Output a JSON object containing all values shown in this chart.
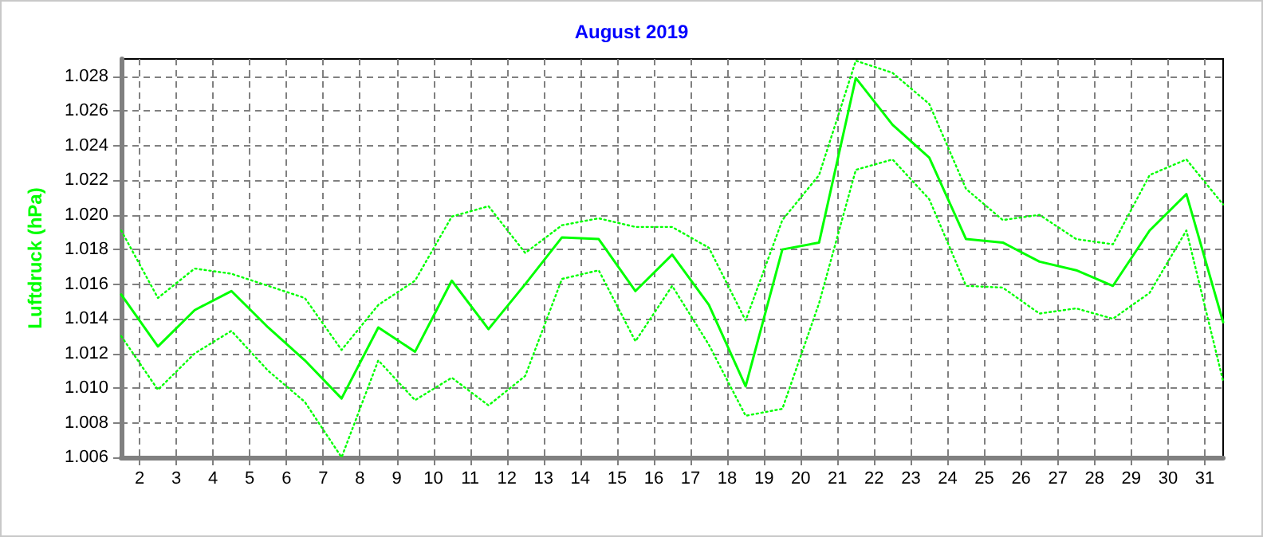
{
  "chart_data": {
    "type": "line",
    "title": "August 2019",
    "ylabel": "Luftdruck (hPa)",
    "x": [
      1.5,
      2.5,
      3.5,
      4.5,
      5.5,
      6.5,
      7.5,
      8.5,
      9.5,
      10.5,
      11.5,
      12.5,
      13.5,
      14.5,
      15.5,
      16.5,
      17.5,
      18.5,
      19.5,
      20.5,
      21.5,
      22.5,
      23.5,
      24.5,
      25.5,
      26.5,
      27.5,
      28.5,
      29.5,
      30.5,
      31.5
    ],
    "xlim": [
      1.5,
      31.5
    ],
    "xticks": [
      2,
      3,
      4,
      5,
      6,
      7,
      8,
      9,
      10,
      11,
      12,
      13,
      14,
      15,
      16,
      17,
      18,
      19,
      20,
      21,
      22,
      23,
      24,
      25,
      26,
      27,
      28,
      29,
      30,
      31
    ],
    "ylim": [
      1.006,
      1.029
    ],
    "yticks": [
      1.006,
      1.008,
      {
        "value": 1.01,
        "label": "1.010"
      },
      1.012,
      1.014,
      1.016,
      1.018,
      {
        "value": 1.02,
        "label": "1.020"
      },
      1.022,
      1.024,
      1.026,
      1.028
    ],
    "grid": true,
    "marker": "none",
    "series": [
      {
        "color": "#00ff00",
        "line_style": "dotted",
        "values": [
          1.0191,
          1.0152,
          1.0169,
          1.0166,
          1.0159,
          1.0152,
          1.0122,
          1.0148,
          1.0162,
          1.0199,
          1.0205,
          1.0178,
          1.0194,
          1.0198,
          1.0193,
          1.0193,
          1.0181,
          1.0139,
          1.0197,
          1.0223,
          1.0289,
          1.0282,
          1.0264,
          1.0215,
          1.0197,
          1.02,
          1.0186,
          1.0183,
          1.0223,
          1.0232,
          1.0206
        ]
      },
      {
        "color": "#00ff00",
        "line_style": "solid",
        "values": [
          1.0154,
          1.0124,
          1.0145,
          1.0156,
          1.0135,
          1.0116,
          1.0094,
          1.0135,
          1.0121,
          1.0162,
          1.0134,
          1.016,
          1.0187,
          1.0186,
          1.0156,
          1.0177,
          1.0148,
          1.0101,
          1.018,
          1.0184,
          1.0279,
          1.0252,
          1.0233,
          1.0186,
          1.0184,
          1.0173,
          1.0168,
          1.0159,
          1.0191,
          1.0212,
          1.0138
        ]
      },
      {
        "color": "#00ff00",
        "line_style": "dotted",
        "values": [
          1.013,
          1.0099,
          1.012,
          1.0133,
          1.011,
          1.0092,
          1.006,
          1.0116,
          1.0093,
          1.0106,
          1.009,
          1.0107,
          1.0163,
          1.0168,
          1.0127,
          1.0159,
          1.0125,
          1.0084,
          1.0088,
          1.0149,
          1.0226,
          1.0232,
          1.0209,
          1.0159,
          1.0158,
          1.0143,
          1.0146,
          1.014,
          1.0155,
          1.0191,
          1.0104
        ]
      }
    ]
  }
}
